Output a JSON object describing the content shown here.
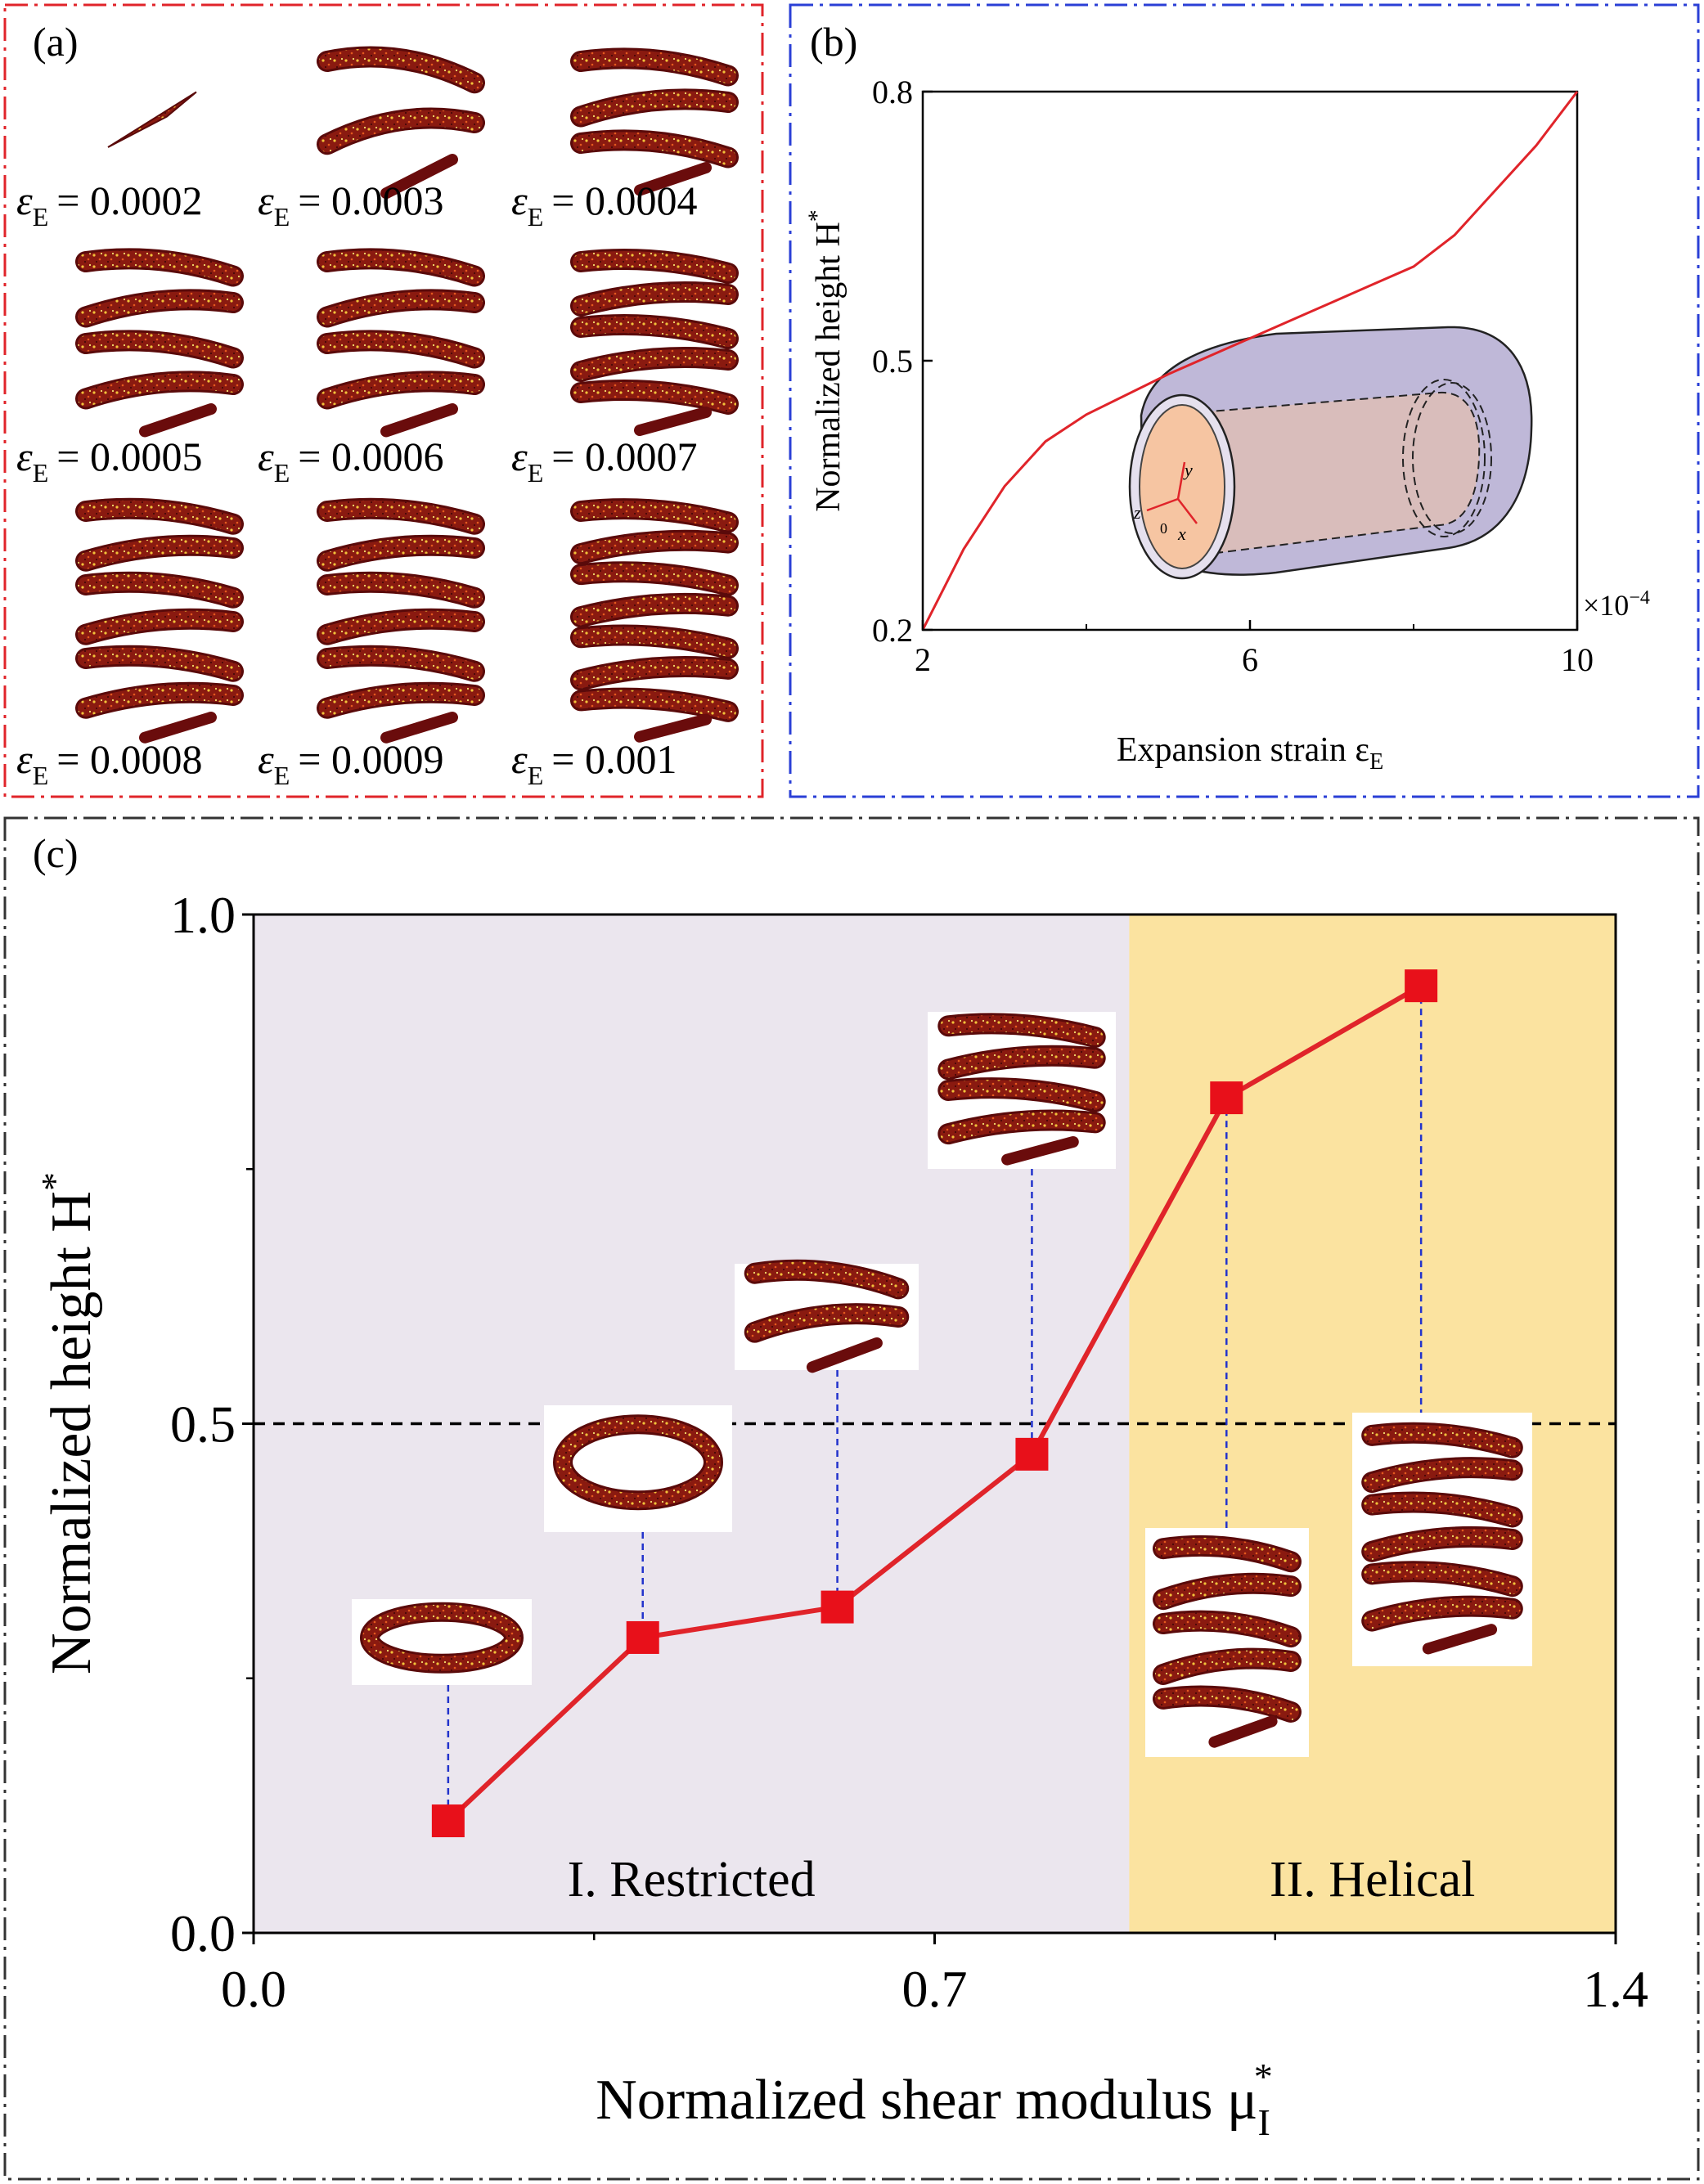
{
  "panels": {
    "a": {
      "label": "(a)",
      "frame_color": "#e0242a",
      "snapshots": [
        {
          "symbol": "ε",
          "subscript": "E",
          "value": "= 0.0002",
          "coils": 0
        },
        {
          "symbol": "ε",
          "subscript": "E",
          "value": "= 0.0003",
          "coils": 1
        },
        {
          "symbol": "ε",
          "subscript": "E",
          "value": "= 0.0004",
          "coils": 2
        },
        {
          "symbol": "ε",
          "subscript": "E",
          "value": "= 0.0005",
          "coils": 3
        },
        {
          "symbol": "ε",
          "subscript": "E",
          "value": "= 0.0006",
          "coils": 3
        },
        {
          "symbol": "ε",
          "subscript": "E",
          "value": "= 0.0007",
          "coils": 4
        },
        {
          "symbol": "ε",
          "subscript": "E",
          "value": "= 0.0008",
          "coils": 5
        },
        {
          "symbol": "ε",
          "subscript": "E",
          "value": "= 0.0009",
          "coils": 5
        },
        {
          "symbol": "ε",
          "subscript": "E",
          "value": "= 0.001",
          "coils": 6
        }
      ]
    },
    "b": {
      "label": "(b)",
      "frame_color": "#2a3fd6",
      "xlabel": "Expansion strain ε",
      "xlabel_sub": "E",
      "ylabel": "Normalized height H",
      "ylabel_sup": "*",
      "multiplier": "×10",
      "multiplier_exp": "−4",
      "inset_axes": {
        "x": "x",
        "y": "y",
        "z": "z",
        "o": "0"
      }
    },
    "c": {
      "label": "(c)",
      "frame_color": "#333333",
      "xlabel": "Normalized shear modulus μ",
      "xlabel_sub": "I",
      "xlabel_sup": "*",
      "ylabel": "Normalized height H",
      "ylabel_sup": "*",
      "regions": [
        {
          "label": "I. Restricted",
          "x_start": 0.0,
          "x_end": 0.9,
          "color": "#ebe6ee"
        },
        {
          "label": "II. Helical",
          "x_start": 0.9,
          "x_end": 1.4,
          "color": "#fbe3a0"
        }
      ]
    }
  },
  "chart_data": [
    {
      "type": "line",
      "panel": "b",
      "x": [
        2.0,
        2.5,
        3.0,
        3.5,
        4.0,
        5.0,
        6.0,
        7.0,
        7.5,
        8.0,
        8.5,
        9.0,
        9.5,
        10.0
      ],
      "y": [
        0.2,
        0.29,
        0.36,
        0.41,
        0.44,
        0.485,
        0.525,
        0.565,
        0.585,
        0.605,
        0.64,
        0.69,
        0.74,
        0.8
      ],
      "xlim": [
        2,
        10
      ],
      "ylim": [
        0.2,
        0.8
      ],
      "xticks": [
        "2",
        "6",
        "10"
      ],
      "xtick_values": [
        2,
        6,
        10
      ],
      "yticks": [
        "0.2",
        "0.5",
        "0.8"
      ],
      "ytick_values": [
        0.2,
        0.5,
        0.8
      ],
      "line_color": "#e0242a",
      "grid": false
    },
    {
      "type": "line",
      "panel": "c",
      "markers": "square",
      "x": [
        0.2,
        0.4,
        0.6,
        0.8,
        1.0,
        1.2
      ],
      "y": [
        0.11,
        0.29,
        0.32,
        0.47,
        0.82,
        0.93
      ],
      "xlim": [
        0.0,
        1.4
      ],
      "ylim": [
        0.0,
        1.0
      ],
      "xticks": [
        "0.0",
        "0.7",
        "1.4"
      ],
      "xtick_values": [
        0.0,
        0.7,
        1.4
      ],
      "yticks": [
        "0.0",
        "0.5",
        "1.0"
      ],
      "ytick_values": [
        0.0,
        0.5,
        1.0
      ],
      "reference_line_y": 0.5,
      "line_color": "#e0242a",
      "marker_color": "#e8101a",
      "grid": false
    }
  ]
}
